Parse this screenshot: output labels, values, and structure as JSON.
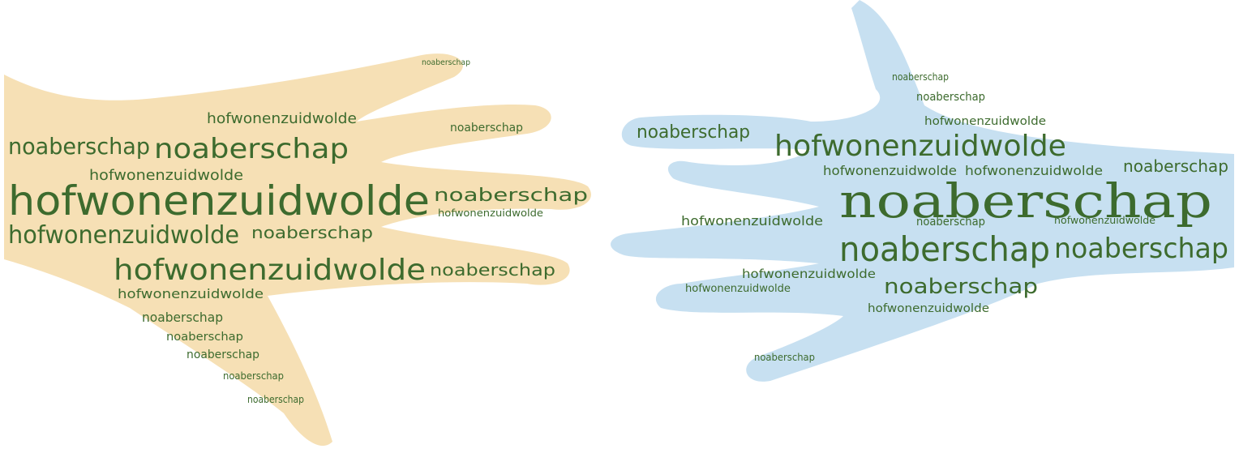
{
  "left_hand": {
    "words": [
      "hofwonenzuidwolde",
      "noaberschap",
      "noaberschap",
      "hofwonenzuidwolde",
      "hofwonenzuidwolde",
      "hofwonenzuidwolde",
      "hofwonenzuidwolde",
      "noaberschap",
      "hofwonenzuidwolde",
      "noaberschap",
      "noaberschap",
      "hofwonenzuidwolde",
      "noaberschap",
      "noaberschap",
      "noaberschap",
      "noaberschap",
      "noaberschap",
      "noaberschap",
      "noaberschap"
    ]
  },
  "right_hand": {
    "words": [
      "noaberschap",
      "hofwonenzuidwolde",
      "noaberschap",
      "noaberschap",
      "noaberschap",
      "noaberschap",
      "hofwonenzuidwolde",
      "hofwonenzuidwolde",
      "noaberschap",
      "hofwonenzuidwolde",
      "hofwonenzuidwolde",
      "hofwonenzuidwolde",
      "noaberschap",
      "hofwonenzuidwolde",
      "noaberschap",
      "noaberschap",
      "hofwonenzuidwolde",
      "noaberschap",
      "hofwonenzuidwolde"
    ]
  }
}
